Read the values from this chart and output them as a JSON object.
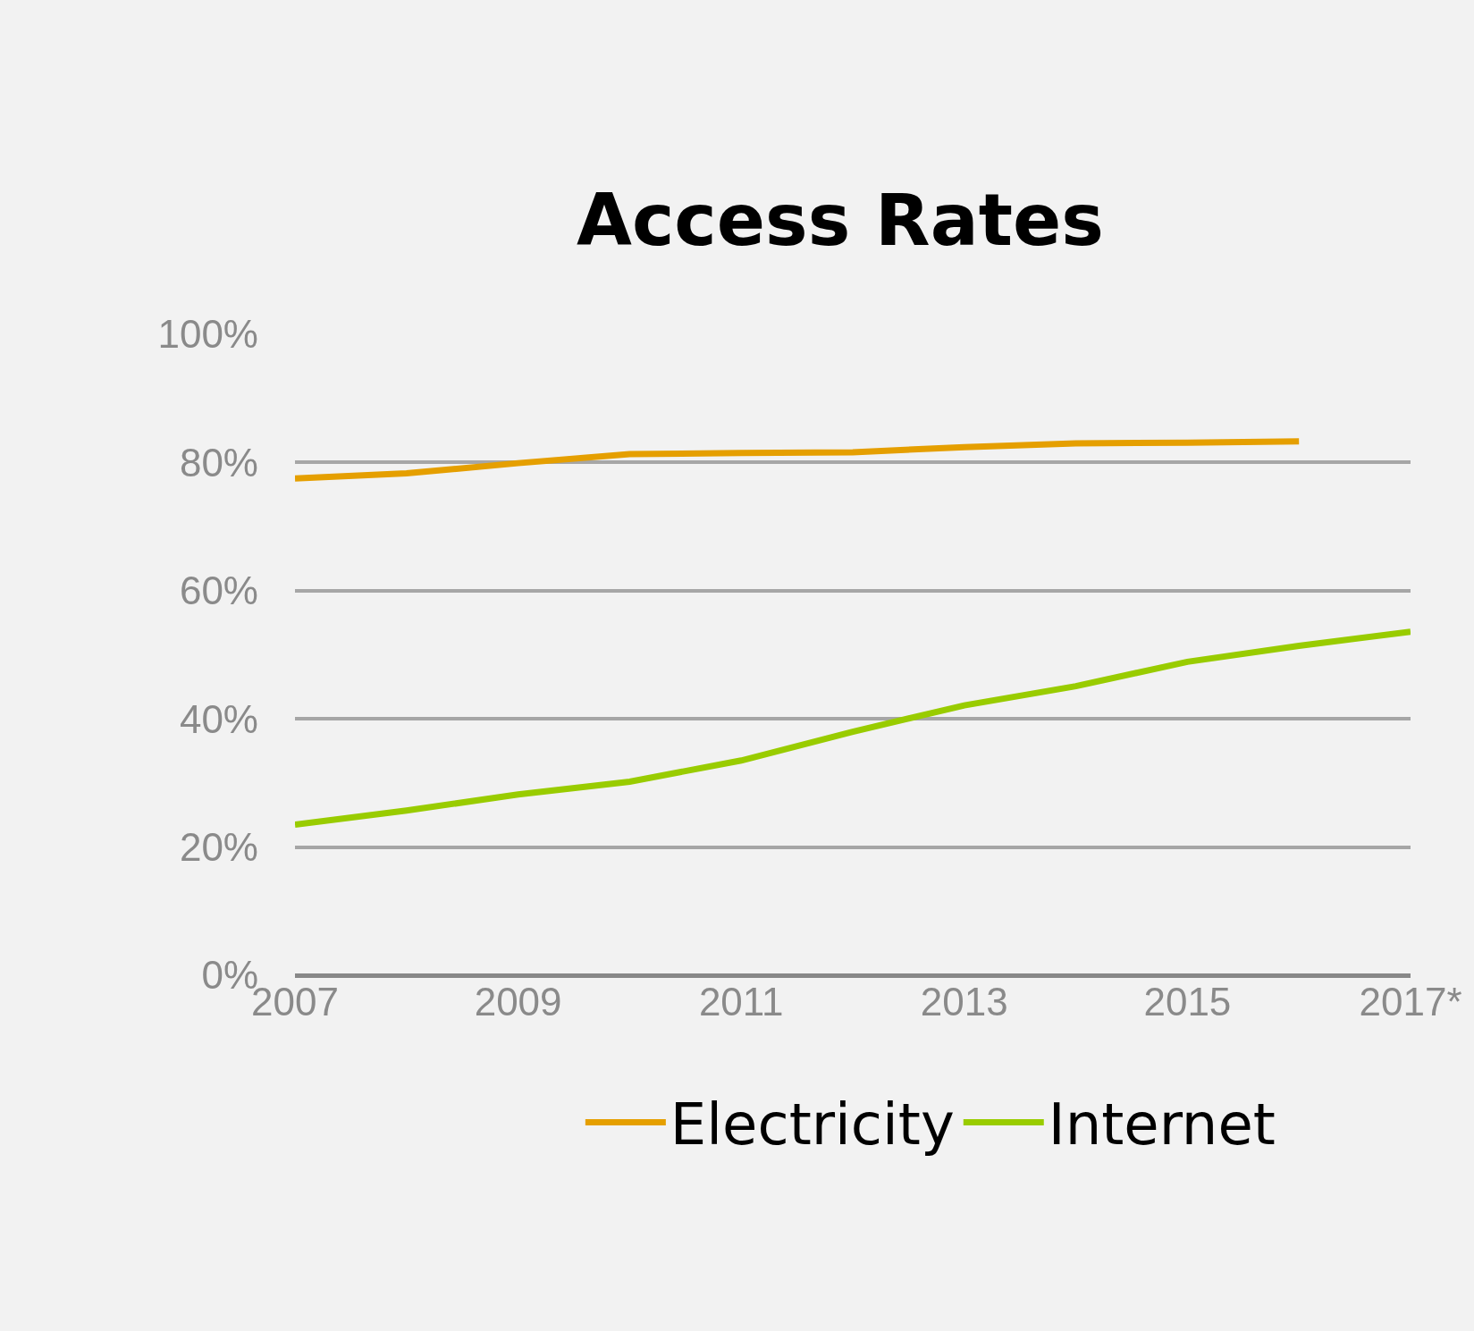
{
  "chart_data": {
    "type": "line",
    "title": "Access Rates",
    "x": [
      2007,
      2008,
      2009,
      2010,
      2011,
      2012,
      2013,
      2014,
      2015,
      2016,
      2017
    ],
    "series": [
      {
        "name": "Electricity",
        "color": "#e59f00",
        "values": [
          77.5,
          78.3,
          79.9,
          81.3,
          81.5,
          81.6,
          82.4,
          83.0,
          83.1,
          83.3,
          null
        ]
      },
      {
        "name": "Internet",
        "color": "#99cc00",
        "values": [
          23.5,
          25.7,
          28.2,
          30.2,
          33.5,
          38.0,
          42.1,
          45.1,
          48.9,
          51.4,
          53.6
        ]
      }
    ],
    "xlim": [
      2007,
      2017
    ],
    "xticks": [
      2007,
      2009,
      2011,
      2013,
      2015,
      {
        "value": 2017,
        "label": "2017*"
      }
    ],
    "ylim": [
      0,
      100
    ],
    "yticks": [
      {
        "value": 0,
        "label": "0%"
      },
      {
        "value": 20,
        "label": "20%"
      },
      {
        "value": 40,
        "label": "40%"
      },
      {
        "value": 60,
        "label": "60%"
      },
      {
        "value": 80,
        "label": "80%"
      },
      {
        "value": 100,
        "label": "100%"
      }
    ],
    "grid": "y",
    "legend": "bottom",
    "marker": "none",
    "line_style": "solid"
  }
}
